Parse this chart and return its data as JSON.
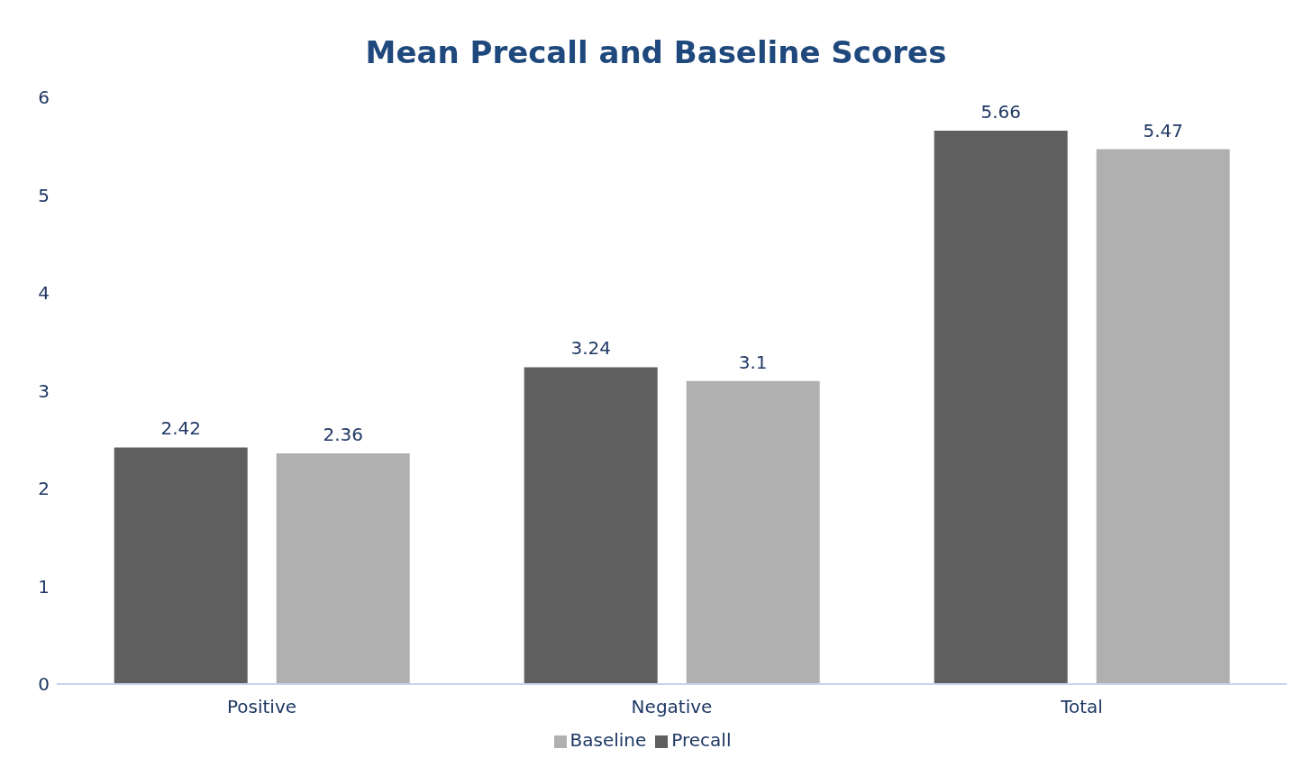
{
  "chart_data": {
    "type": "bar",
    "title": "Mean Precall and Baseline Scores",
    "categories": [
      "Positive",
      "Negative",
      "Total"
    ],
    "series": [
      {
        "name": "Precall",
        "color": "#5f5f5f",
        "values": [
          2.42,
          3.24,
          5.66
        ]
      },
      {
        "name": "Baseline",
        "color": "#b0b0b0",
        "values": [
          2.36,
          3.1,
          5.47
        ]
      }
    ],
    "ylim": [
      0,
      6
    ],
    "yticks": [
      0,
      1,
      2,
      3,
      4,
      5,
      6
    ],
    "grid": false,
    "legend": "bottom",
    "data_labels": true
  }
}
